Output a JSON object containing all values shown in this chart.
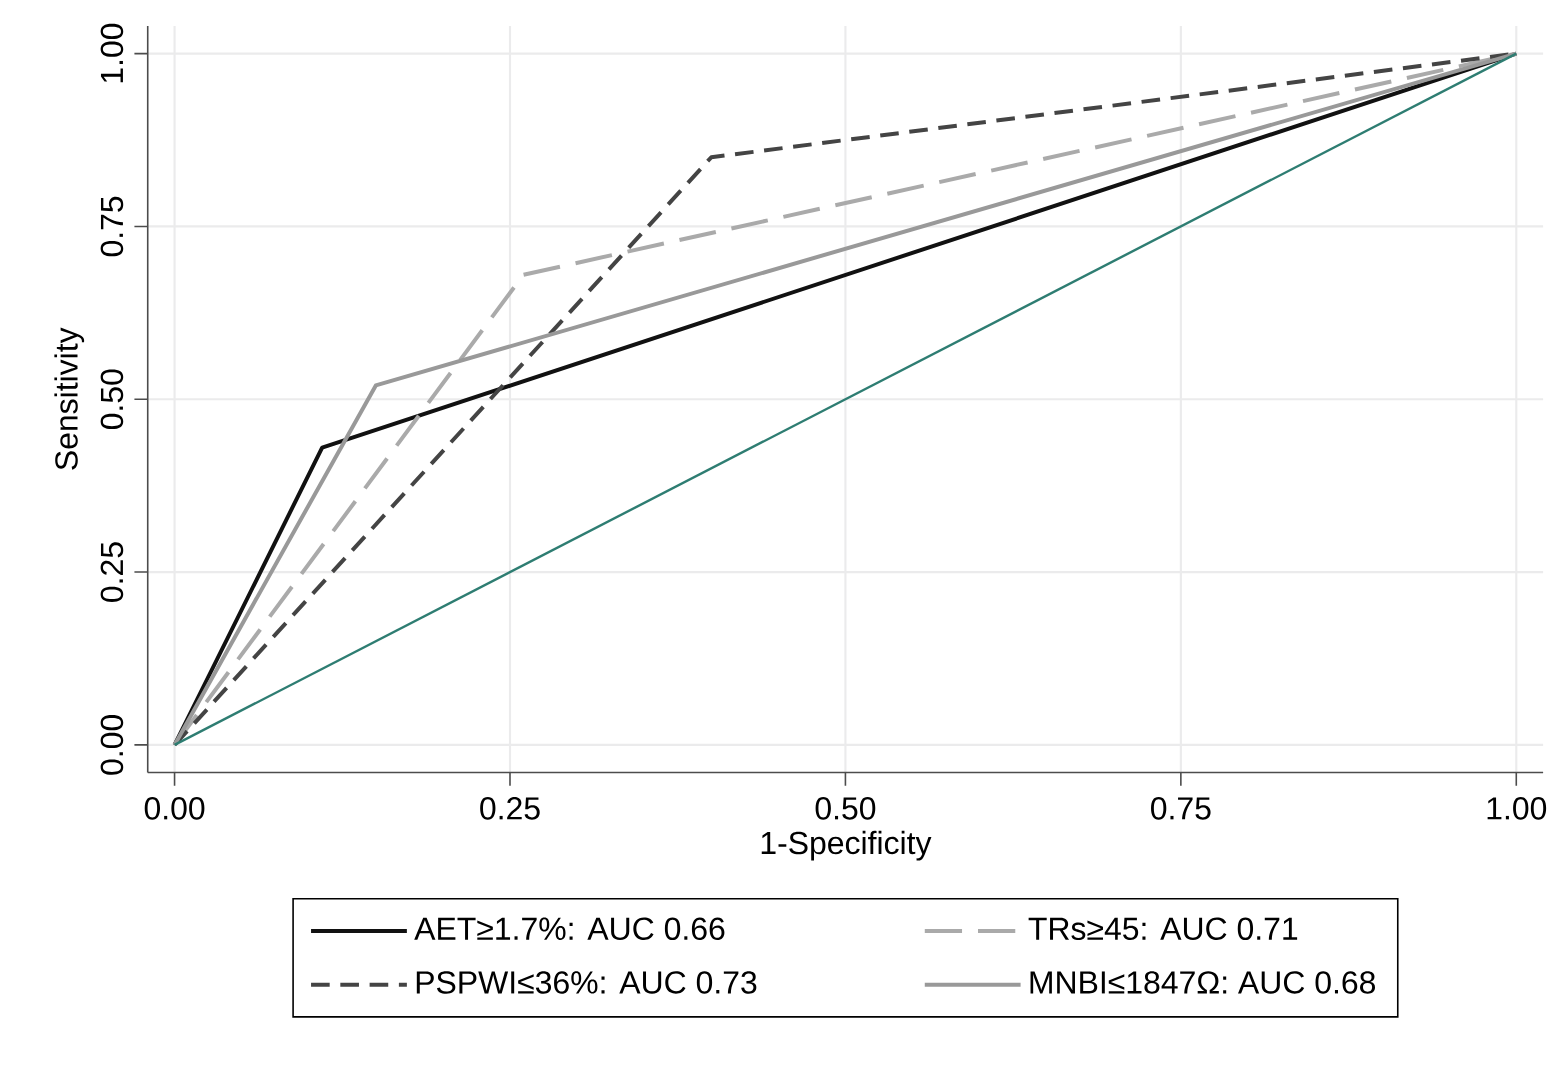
{
  "chart_data": {
    "type": "line",
    "xlabel": "1-Specificity",
    "ylabel": "Sensitivity",
    "xlim": [
      -0.02,
      1.02
    ],
    "ylim": [
      -0.04,
      1.04
    ],
    "xticks": [
      {
        "value": 0,
        "label": "0.00"
      },
      {
        "value": 0.25,
        "label": "0.25"
      },
      {
        "value": 0.5,
        "label": "0.50"
      },
      {
        "value": 0.75,
        "label": "0.75"
      },
      {
        "value": 1,
        "label": "1.00"
      }
    ],
    "yticks": [
      {
        "value": 0,
        "label": "0.00"
      },
      {
        "value": 0.25,
        "label": "0.25"
      },
      {
        "value": 0.5,
        "label": "0.50"
      },
      {
        "value": 0.75,
        "label": "0.75"
      },
      {
        "value": 1,
        "label": "1.00"
      }
    ],
    "grid": true,
    "legend": "bottom",
    "series": [
      {
        "name": "AET≥1.7%: AUC 0.66",
        "color": "#111111",
        "line_style": "solid",
        "x": [
          0,
          0.11,
          1
        ],
        "values": [
          0,
          0.43,
          1
        ]
      },
      {
        "name": "TRs≥45: AUC 0.71",
        "color": "#aaaaaa",
        "line_style": "dashed",
        "x": [
          0,
          0.26,
          1
        ],
        "values": [
          0,
          0.68,
          1
        ]
      },
      {
        "name": "PSPWI≤36%: AUC 0.73",
        "color": "#444444",
        "line_style": "dashed",
        "x": [
          0,
          0.4,
          1
        ],
        "values": [
          0,
          0.85,
          1
        ]
      },
      {
        "name": "MNBI≤1847Ω: AUC 0.68",
        "color": "#999999",
        "line_style": "solid",
        "x": [
          0,
          0.15,
          1
        ],
        "values": [
          0,
          0.52,
          1
        ]
      },
      {
        "color": "#2e7d72",
        "line_style": "solid",
        "x": [
          0,
          1
        ],
        "values": [
          0,
          1
        ]
      }
    ]
  }
}
